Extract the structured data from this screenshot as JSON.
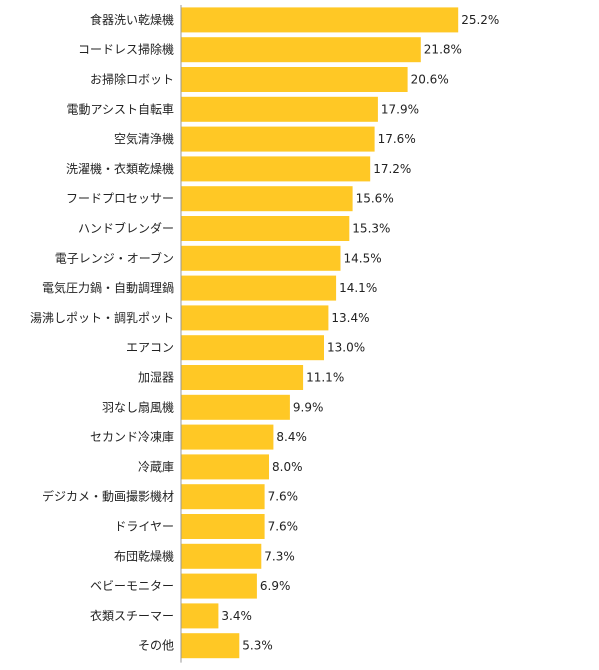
{
  "chart_data": {
    "type": "bar",
    "orientation": "horizontal",
    "categories": [
      "食器洗い乾燥機",
      "コードレス掃除機",
      "お掃除ロボット",
      "電動アシスト自転車",
      "空気清浄機",
      "洗濯機・衣類乾燥機",
      "フードプロセッサー",
      "ハンドブレンダー",
      "電子レンジ・オーブン",
      "電気圧力鍋・自動調理鍋",
      "湯沸しポット・調乳ポット",
      "エアコン",
      "加湿器",
      "羽なし扇風機",
      "セカンド冷凍庫",
      "冷蔵庫",
      "デジカメ・動画撮影機材",
      "ドライヤー",
      "布団乾燥機",
      "ベビーモニター",
      "衣類スチーマー",
      "その他"
    ],
    "values": [
      25.2,
      21.8,
      20.6,
      17.9,
      17.6,
      17.2,
      15.6,
      15.3,
      14.5,
      14.1,
      13.4,
      13.0,
      11.1,
      9.9,
      8.4,
      8.0,
      7.6,
      7.6,
      7.3,
      6.9,
      3.4,
      5.3
    ],
    "value_labels": [
      "25.2%",
      "21.8%",
      "20.6%",
      "17.9%",
      "17.6%",
      "17.2%",
      "15.6%",
      "15.3%",
      "14.5%",
      "14.1%",
      "13.4%",
      "13.0%",
      "11.1%",
      "9.9%",
      "8.4%",
      "8.0%",
      "7.6%",
      "7.6%",
      "7.3%",
      "6.9%",
      "3.4%",
      "5.3%"
    ],
    "xlim": [
      0,
      30
    ],
    "grid": false,
    "legend": "none",
    "bar_color": "#ffc825",
    "axis_color": "#999999"
  }
}
